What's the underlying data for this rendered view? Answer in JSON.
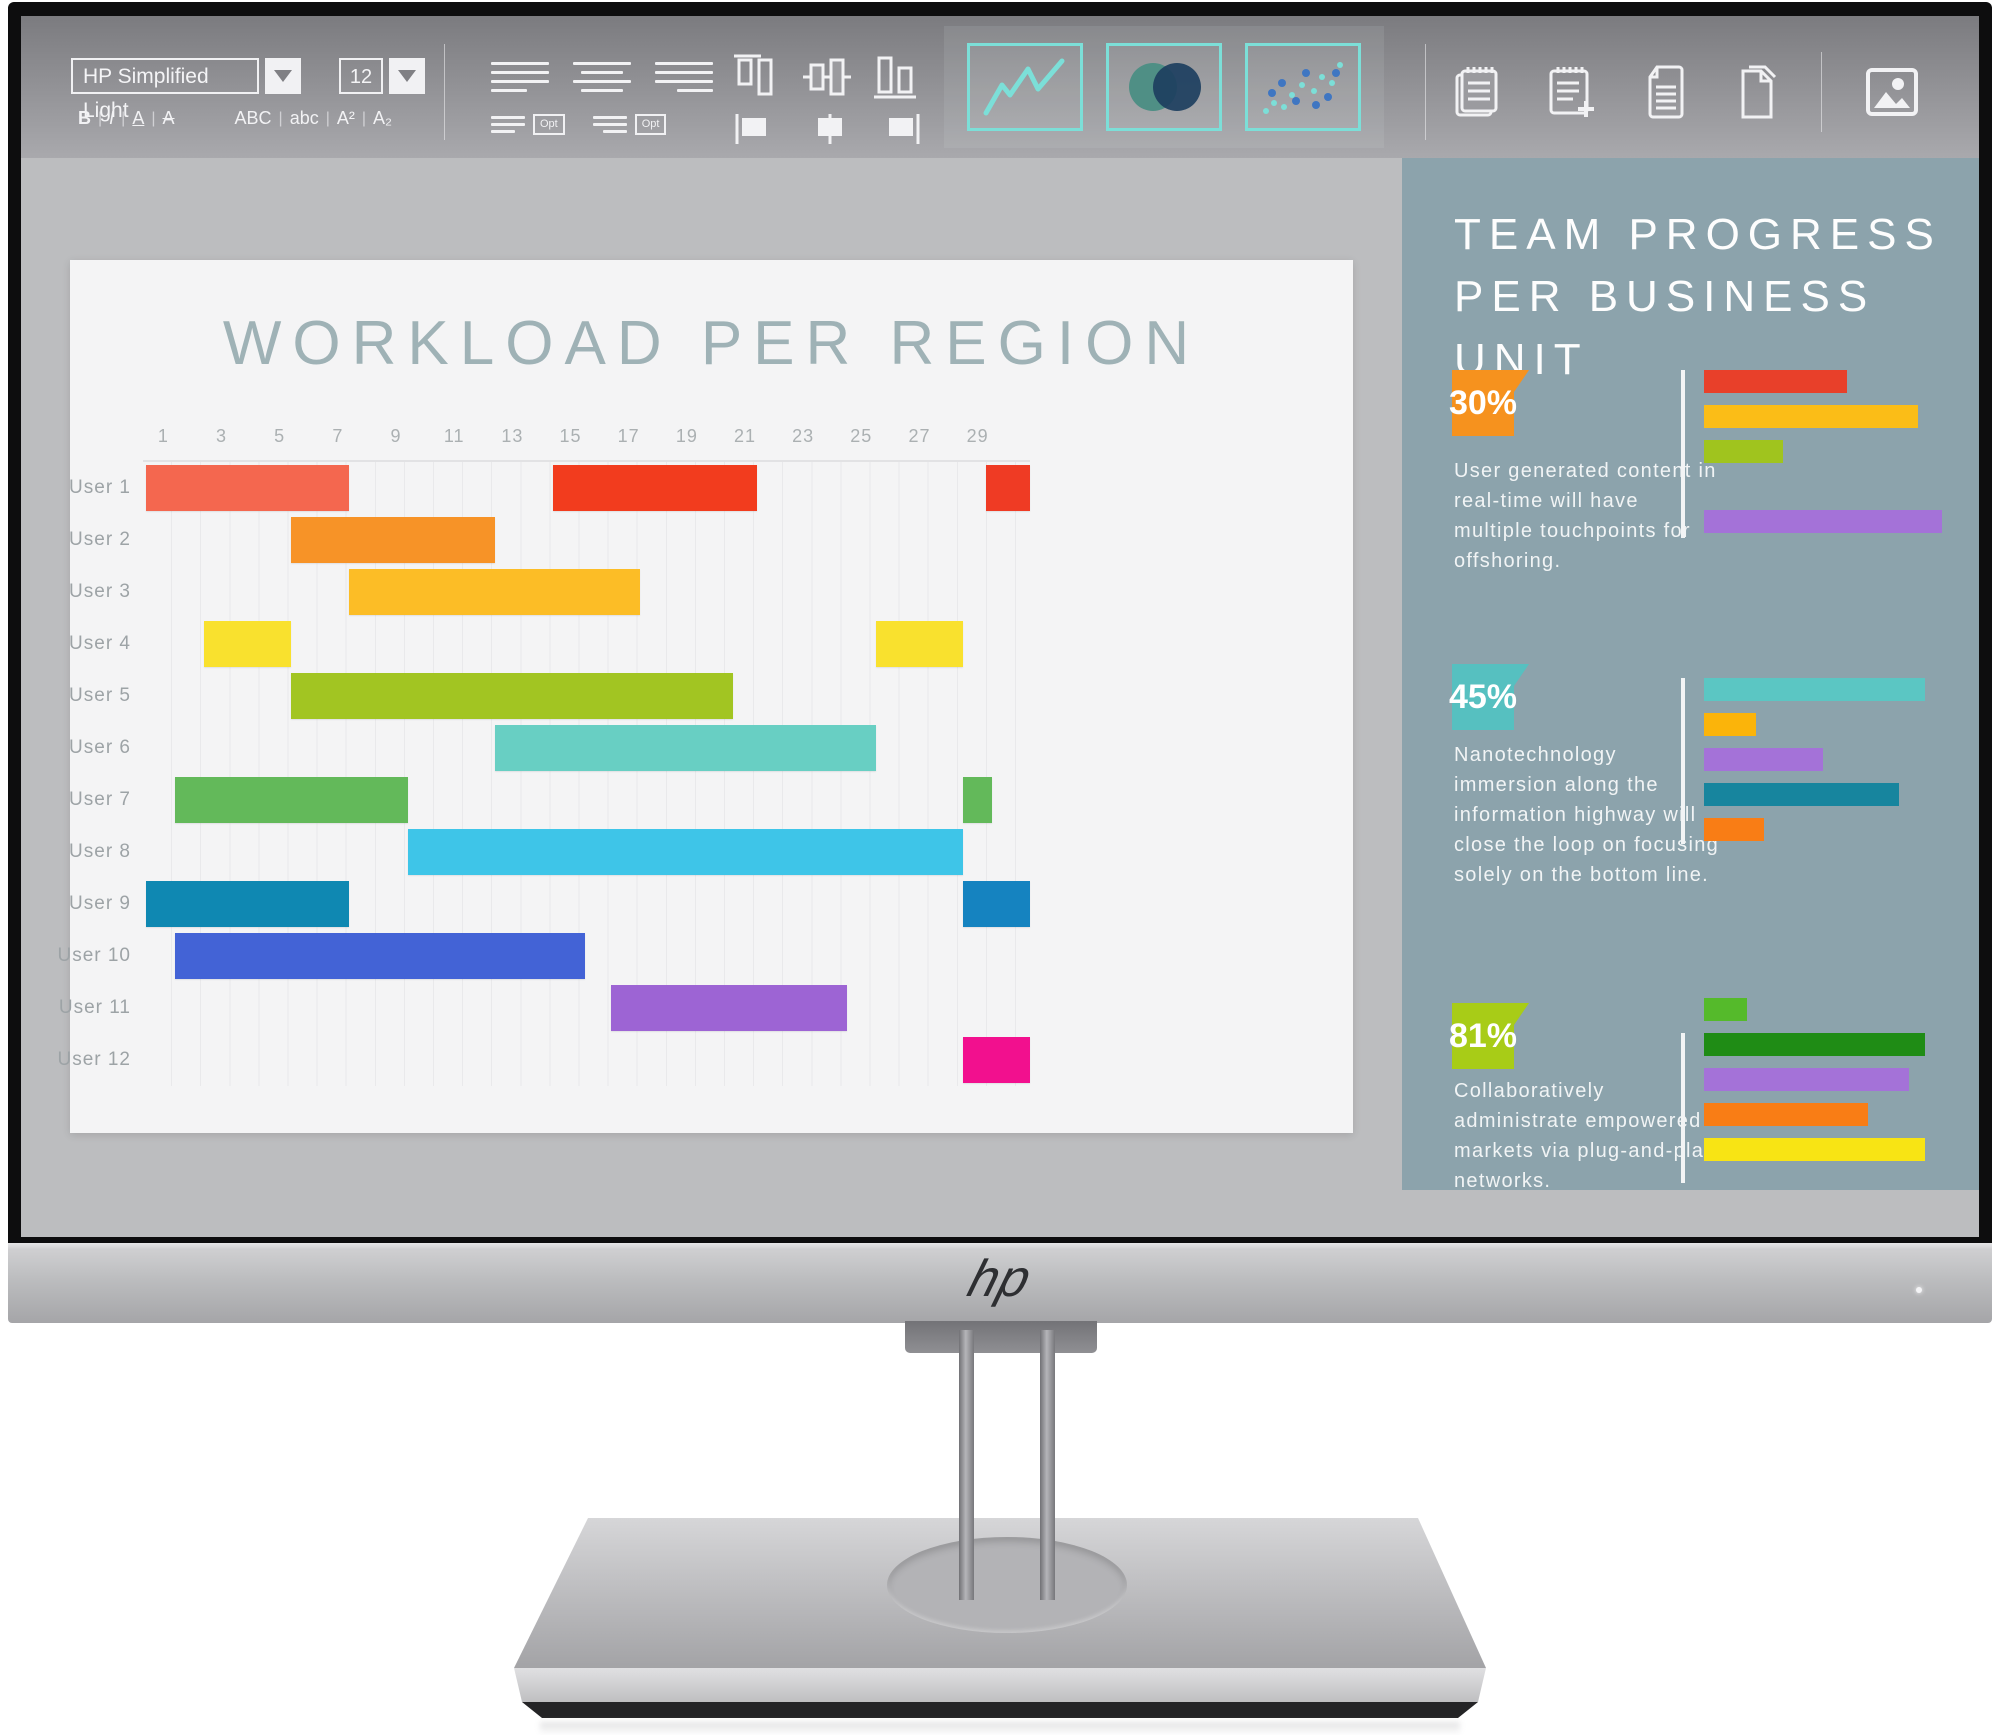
{
  "toolbar": {
    "font_name": "HP Simplified Light",
    "font_size": "12",
    "format_buttons": [
      "B",
      "I",
      "A",
      "A",
      "ABC",
      "abc",
      "A²",
      "A₂"
    ],
    "opt_label": "Opt",
    "icon_groups": {
      "paragraph": [
        "align-left-icon",
        "align-center-icon",
        "align-right-icon",
        "indent-increase-icon",
        "indent-decrease-icon"
      ],
      "object_align": [
        "align-top-icon",
        "align-middle-icon",
        "align-bottom-icon",
        "distribute-left-icon",
        "distribute-center-icon",
        "distribute-right-icon"
      ],
      "insert_charts": [
        "line-chart-icon",
        "venn-diagram-icon",
        "scatter-plot-icon"
      ],
      "documents": [
        "notepad-icon",
        "notepad-add-icon",
        "document-text-icon",
        "document-copy-icon",
        "image-icon"
      ]
    },
    "accent_color": "#7cdfd8"
  },
  "document": {
    "title": "WORKLOAD PER REGION"
  },
  "sidebar": {
    "title_line1": "TEAM PROGRESS",
    "title_line2": "PER BUSINESS UNIT",
    "background_color": "#8ca3ac",
    "blocks": [
      {
        "stat": "30%",
        "badge_color": "#f6921e",
        "description": "User generated content in real-time will have multiple touchpoints for offshoring."
      },
      {
        "stat": "45%",
        "badge_color": "#56c0c0",
        "description": "Nanotechnology immersion along the information highway will close the loop on focusing solely on the bottom line."
      },
      {
        "stat": "81%",
        "badge_color": "#a8cc17",
        "description": "Collaboratively administrate empowered markets via plug-and-play networks."
      }
    ]
  },
  "monitor": {
    "brand_logo": "hp"
  },
  "chart_data": [
    {
      "type": "gantt-bar",
      "title": "WORKLOAD PER REGION",
      "x_ticks": [
        1,
        3,
        5,
        7,
        9,
        11,
        13,
        15,
        17,
        19,
        21,
        23,
        25,
        27,
        29
      ],
      "x_max": 30.5,
      "grid": true,
      "rows": [
        {
          "label": "User 1",
          "bars": [
            {
              "start": 0.4,
              "end": 7.4,
              "color": "#f4674f"
            },
            {
              "start": 14.4,
              "end": 21.4,
              "color": "#f23c1e"
            },
            {
              "start": 29.3,
              "end": 30.8,
              "color": "#ef3b24"
            }
          ]
        },
        {
          "label": "User 2",
          "bars": [
            {
              "start": 5.4,
              "end": 12.4,
              "color": "#f79327"
            }
          ]
        },
        {
          "label": "User 3",
          "bars": [
            {
              "start": 7.4,
              "end": 17.4,
              "color": "#fcbd26"
            }
          ]
        },
        {
          "label": "User 4",
          "bars": [
            {
              "start": 2.4,
              "end": 5.4,
              "color": "#f9e12e"
            },
            {
              "start": 25.5,
              "end": 28.5,
              "color": "#f9e12e"
            }
          ]
        },
        {
          "label": "User 5",
          "bars": [
            {
              "start": 5.4,
              "end": 20.6,
              "color": "#a2c522"
            }
          ]
        },
        {
          "label": "User 6",
          "bars": [
            {
              "start": 12.4,
              "end": 25.5,
              "color": "#68cfc3"
            }
          ]
        },
        {
          "label": "User 7",
          "bars": [
            {
              "start": 1.4,
              "end": 9.4,
              "color": "#63b95a"
            },
            {
              "start": 28.5,
              "end": 29.5,
              "color": "#63b95a"
            }
          ]
        },
        {
          "label": "User 8",
          "bars": [
            {
              "start": 9.4,
              "end": 28.5,
              "color": "#3ec5e8"
            }
          ]
        },
        {
          "label": "User 9",
          "bars": [
            {
              "start": 0.4,
              "end": 7.4,
              "color": "#0f88b2"
            },
            {
              "start": 28.5,
              "end": 30.8,
              "color": "#1583c0"
            }
          ]
        },
        {
          "label": "User 10",
          "bars": [
            {
              "start": 1.4,
              "end": 15.5,
              "color": "#4363d6"
            }
          ]
        },
        {
          "label": "User 11",
          "bars": [
            {
              "start": 16.4,
              "end": 24.5,
              "color": "#9d64d4"
            }
          ]
        },
        {
          "label": "User 12",
          "bars": [
            {
              "start": 28.5,
              "end": 30.8,
              "color": "#f2108e"
            }
          ]
        }
      ]
    },
    {
      "type": "bar",
      "orientation": "horizontal",
      "linked_stat": "30%",
      "bars": [
        {
          "width_pct": 60,
          "color": "#e8402a"
        },
        {
          "width_pct": 90,
          "color": "#fbbd17"
        },
        {
          "width_pct": 33,
          "color": "#a0c41e"
        },
        {
          "spacer": true
        },
        {
          "width_pct": 100,
          "color": "#a472d8"
        }
      ]
    },
    {
      "type": "bar",
      "orientation": "horizontal",
      "linked_stat": "45%",
      "bars": [
        {
          "width_pct": 93,
          "color": "#5bc6c3"
        },
        {
          "width_pct": 22,
          "color": "#fbb40a"
        },
        {
          "width_pct": 50,
          "color": "#a472d8"
        },
        {
          "width_pct": 82,
          "color": "#17859e"
        },
        {
          "width_pct": 25,
          "color": "#f97d15"
        }
      ]
    },
    {
      "type": "bar",
      "orientation": "horizontal",
      "linked_stat": "81%",
      "bars": [
        {
          "width_pct": 18,
          "color": "#55ba2b"
        },
        {
          "width_pct": 93,
          "color": "#1f8c15"
        },
        {
          "width_pct": 86,
          "color": "#a472d8"
        },
        {
          "width_pct": 69,
          "color": "#f97d15"
        },
        {
          "width_pct": 93,
          "color": "#f8e414"
        }
      ]
    }
  ]
}
